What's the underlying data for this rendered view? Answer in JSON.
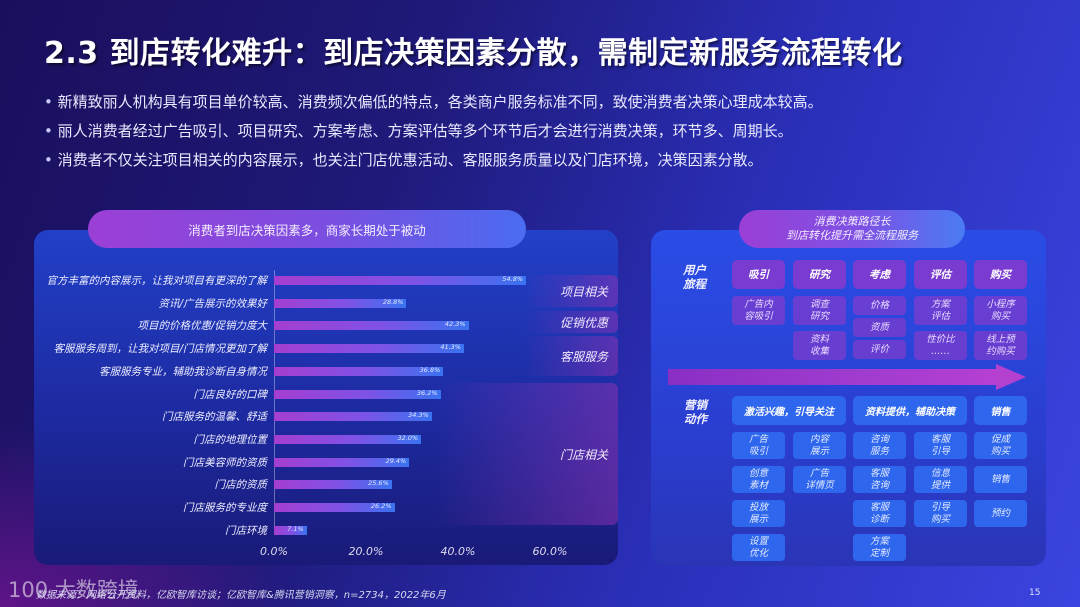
{
  "title": "2.3 到店转化难升：到店决策因素分散，需制定新服务流程转化",
  "bullets": [
    "新精致丽人机构具有项目单价较高、消费频次偏低的特点，各类商户服务标准不同，致使消费者决策心理成本较高。",
    "丽人消费者经过广告吸引、项目研究、方案考虑、方案评估等多个环节后才会进行消费决策，环节多、周期长。",
    "消费者不仅关注项目相关的内容展示，也关注门店优惠活动、客服服务质量以及门店环境，决策因素分散。"
  ],
  "left_panel": {
    "header": "消费者到店决策因素多，商家长期处于被动",
    "value_labels": [
      "54.8%",
      "28.8%",
      "42.3%",
      "41.3%",
      "36.8%",
      "36.2%",
      "34.3%",
      "32.0%",
      "29.4%",
      "25.6%",
      "26.2%",
      "7.1%"
    ],
    "x_ticks": [
      "0.0%",
      "20.0%",
      "40.0%",
      "60.0%"
    ],
    "groups": [
      "项目相关",
      "促销优惠",
      "客服服务",
      "门店相关"
    ]
  },
  "chart_data": {
    "type": "bar",
    "orientation": "horizontal",
    "title": "消费者到店决策因素多，商家长期处于被动",
    "categories": [
      "官方丰富的内容展示，让我对项目有更深的了解",
      "资讯/广告展示的效果好",
      "项目的价格优惠/促销力度大",
      "客服服务周到，让我对项目/门店情况更加了解",
      "客服服务专业，辅助我诊断自身情况",
      "门店良好的口碑",
      "门店服务的温馨、舒适",
      "门店的地理位置",
      "门店美容师的资质",
      "门店的资质",
      "门店服务的专业度",
      "门店环境"
    ],
    "values": [
      54.8,
      28.8,
      42.3,
      41.3,
      36.8,
      36.2,
      34.3,
      32.0,
      29.4,
      25.6,
      26.2,
      7.1
    ],
    "unit": "%",
    "xlim": [
      0,
      60
    ],
    "x_ticks": [
      0,
      20,
      40,
      60
    ],
    "groups": [
      {
        "name": "项目相关",
        "rows": [
          0,
          1
        ]
      },
      {
        "name": "促销优惠",
        "rows": [
          2
        ]
      },
      {
        "name": "客服服务",
        "rows": [
          3,
          4
        ]
      },
      {
        "name": "门店相关",
        "rows": [
          5,
          6,
          7,
          8,
          9,
          10,
          11
        ]
      }
    ],
    "xlabel": "",
    "ylabel": "",
    "grid": false
  },
  "right_panel": {
    "header_line1": "消费决策路径长",
    "header_line2": "到店转化提升需全流程服务",
    "user_journey_label": "用户\n旅程",
    "user_journey_label_l1": "用户",
    "user_journey_label_l2": "旅程",
    "stages": [
      "吸引",
      "研究",
      "考虑",
      "评估",
      "购买"
    ],
    "stage_details": [
      [
        {
          "l1": "广告内",
          "l2": "容吸引"
        }
      ],
      [
        {
          "l1": "调查",
          "l2": "研究"
        },
        {
          "l1": "资料",
          "l2": "收集"
        }
      ],
      [
        {
          "l1": "价格",
          "l2": ""
        },
        {
          "l1": "资质",
          "l2": ""
        },
        {
          "l1": "评价",
          "l2": ""
        }
      ],
      [
        {
          "l1": "方案",
          "l2": "评估"
        },
        {
          "l1": "性价比",
          "l2": "……"
        }
      ],
      [
        {
          "l1": "小程序",
          "l2": "购买"
        },
        {
          "l1": "线上预",
          "l2": "约购买"
        }
      ]
    ],
    "marketing_label_l1": "营销",
    "marketing_label_l2": "动作",
    "actions": [
      "激活兴趣，引导关注",
      "资料提供，辅助决策",
      "销售"
    ],
    "action_details": [
      [
        {
          "l1": "广告",
          "l2": "吸引"
        },
        {
          "l1": "创意",
          "l2": "素材"
        },
        {
          "l1": "投放",
          "l2": "展示"
        },
        {
          "l1": "设置",
          "l2": "优化"
        }
      ],
      [
        {
          "l1": "内容",
          "l2": "展示"
        },
        {
          "l1": "广告",
          "l2": "详情页"
        }
      ],
      [
        {
          "l1": "咨询",
          "l2": "服务"
        },
        {
          "l1": "客服",
          "l2": "咨询"
        },
        {
          "l1": "客服",
          "l2": "诊断"
        },
        {
          "l1": "方案",
          "l2": "定制"
        }
      ],
      [
        {
          "l1": "客服",
          "l2": "引导"
        },
        {
          "l1": "信息",
          "l2": "提供"
        },
        {
          "l1": "引导",
          "l2": "购买"
        }
      ],
      [
        {
          "l1": "促成",
          "l2": "购买"
        },
        {
          "l1": "销售",
          "l2": ""
        },
        {
          "l1": "预约",
          "l2": ""
        }
      ]
    ]
  },
  "footer": {
    "logo": "100 大数跨境",
    "source": "数据来源：网络公开资料，亿欧智库访谈；亿欧智库&腾讯营销洞察，n=2734，2022年6月",
    "page_number": "15"
  },
  "colors": {
    "bar_start": "#a53ed0",
    "bar_end": "#3a73f0",
    "stage_purple": "#7a3bd0",
    "action_blue": "#2f66ee"
  }
}
